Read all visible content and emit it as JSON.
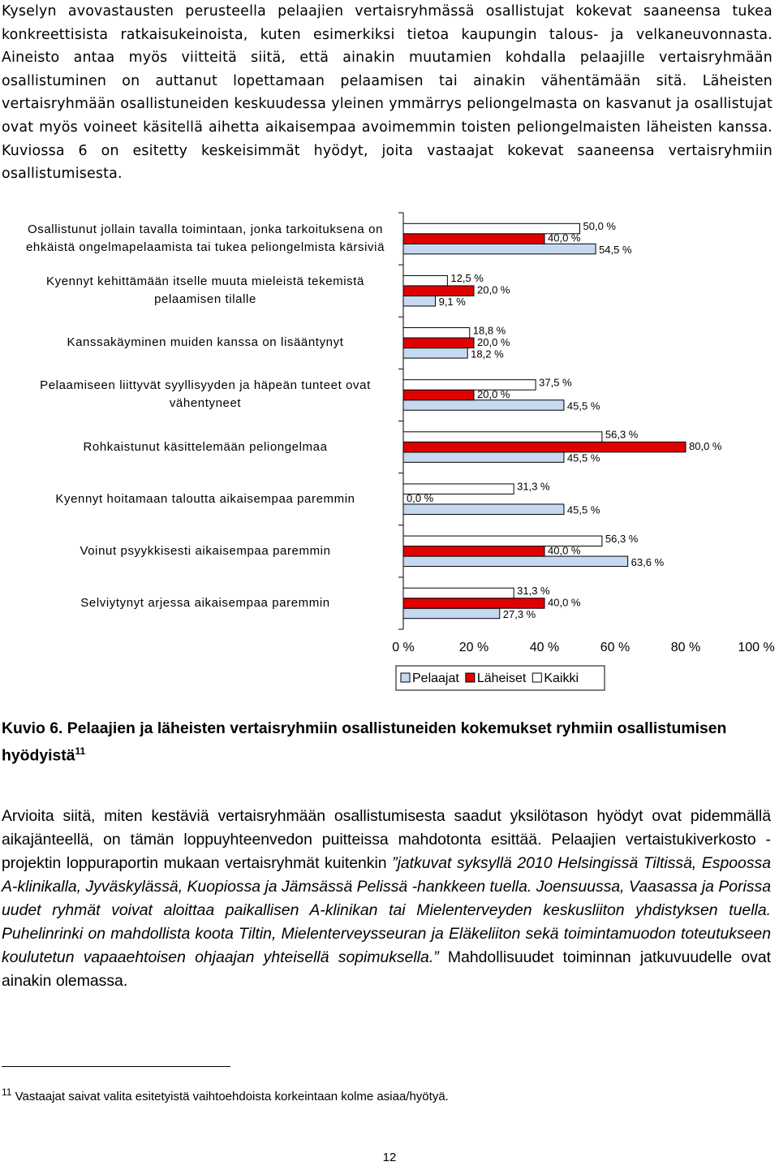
{
  "paragraph_1": "Kyselyn avovastausten perusteella pelaajien vertaisryhmässä osallistujat kokevat saaneensa tukea konkreettisista ratkaisukeinoista, kuten esimerkiksi tietoa kaupungin talous- ja velkaneuvonnasta. Aineisto antaa myös viitteitä siitä, että ainakin muutamien kohdalla pelaajille vertaisryhmään osallistuminen on auttanut lopettamaan pelaamisen tai ainakin vähentämään sitä. Läheisten vertaisryhmään osallistuneiden keskuudessa yleinen ymmärrys peliongelmasta on kasvanut ja osallistujat ovat myös voineet käsitellä aihetta aikaisempaa avoimemmin toisten peliongelmaisten läheisten kanssa. Kuviossa 6 on esitetty keskeisimmät hyödyt, joita vastaajat kokevat saaneensa vertaisryhmiin osallistumisesta.",
  "chart_data": {
    "type": "bar",
    "orientation": "horizontal",
    "categories": [
      "Osallistunut jollain tavalla toimintaan, jonka tarkoituksena on ehkäistä ongelmapelaamista tai tukea peliongelmista kärsiviä",
      "Kyennyt kehittämään itselle muuta mieleistä tekemistä pelaamisen tilalle",
      "Kanssakäyminen muiden kanssa on lisääntynyt",
      "Pelaamiseen liittyvät syyllisyyden ja häpeän tunteet ovat vähentyneet",
      "Rohkaistunut käsittelemään peliongelmaa",
      "Kyennyt hoitamaan taloutta aikaisempaa paremmin",
      "Voinut psyykkisesti aikaisempaa paremmin",
      "Selviytynyt arjessa aikaisempaa paremmin"
    ],
    "series": [
      {
        "name": "Pelaajat",
        "color": "#c6d9f0",
        "values": [
          54.5,
          9.1,
          18.2,
          45.5,
          45.5,
          45.5,
          63.6,
          27.3
        ],
        "value_labels": [
          "54,5 %",
          "9,1 %",
          "18,2 %",
          "45,5 %",
          "45,5 %",
          "45,5 %",
          "63,6 %",
          "27,3 %"
        ]
      },
      {
        "name": "Läheiset",
        "color": "#e00000",
        "values": [
          40.0,
          20.0,
          20.0,
          20.0,
          80.0,
          0.0,
          40.0,
          40.0
        ],
        "value_labels": [
          "40,0 %",
          "20,0 %",
          "20,0 %",
          "20,0 %",
          "80,0 %",
          "0,0 %",
          "40,0 %",
          "40,0 %"
        ]
      },
      {
        "name": "Kaikki",
        "color": "#ffffff",
        "values": [
          50.0,
          12.5,
          18.8,
          37.5,
          56.3,
          31.3,
          56.3,
          31.3
        ],
        "value_labels": [
          "50,0 %",
          "12,5 %",
          "18,8 %",
          "37,5 %",
          "56,3 %",
          "31,3 %",
          "56,3 %",
          "31,3 %"
        ]
      }
    ],
    "xlim": [
      0,
      100
    ],
    "xticks": [
      {
        "value": 0,
        "label": "0 %"
      },
      {
        "value": 20,
        "label": "20 %"
      },
      {
        "value": 40,
        "label": "40 %"
      },
      {
        "value": 60,
        "label": "60 %"
      },
      {
        "value": 80,
        "label": "80 %"
      },
      {
        "value": 100,
        "label": "100 %"
      }
    ],
    "legend": "bottom"
  },
  "caption": {
    "text": "Kuvio 6. Pelaajien ja läheisten vertaisryhmiin osallistuneiden kokemukset ryhmiin osallistumisen hyödyistä",
    "note_ref": "11"
  },
  "paragraph_2": {
    "text_1": "Arvioita siitä, miten kestäviä vertaisryhmään osallistumisesta saadut yksilötason hyödyt ovat pidemmällä aikajänteellä, on tämän loppuyhteenvedon puitteissa mahdotonta esittää. Pelaajien vertaistukiverkosto -projektin loppuraportin mukaan vertaisryhmät kuitenkin ",
    "quote": "”jatkuvat syksyllä 2010 Helsingissä Tiltissä, Espoossa A-klinikalla, Jyväskylässä, Kuopiossa ja Jämsässä Pelissä -hankkeen tuella. Joensuussa, Vaasassa ja Porissa uudet ryhmät voivat aloittaa paikallisen A-klinikan tai Mielenterveyden keskusliiton yhdistyksen tuella. Puhelinrinki on mahdollista koota Tiltin, Mielenterveysseuran ja Eläkeliiton sekä toimintamuodon toteutukseen koulutetun vapaaehtoisen ohjaajan yhteisellä sopimuksella.”",
    "text_2": " Mahdollisuudet toiminnan jatkuvuudelle ovat ainakin olemassa."
  },
  "footnote": {
    "number": "11",
    "text": "Vastaajat saivat valita esitetyistä vaihtoehdoista korkeintaan kolme asiaa/hyötyä."
  },
  "page_number": "12"
}
